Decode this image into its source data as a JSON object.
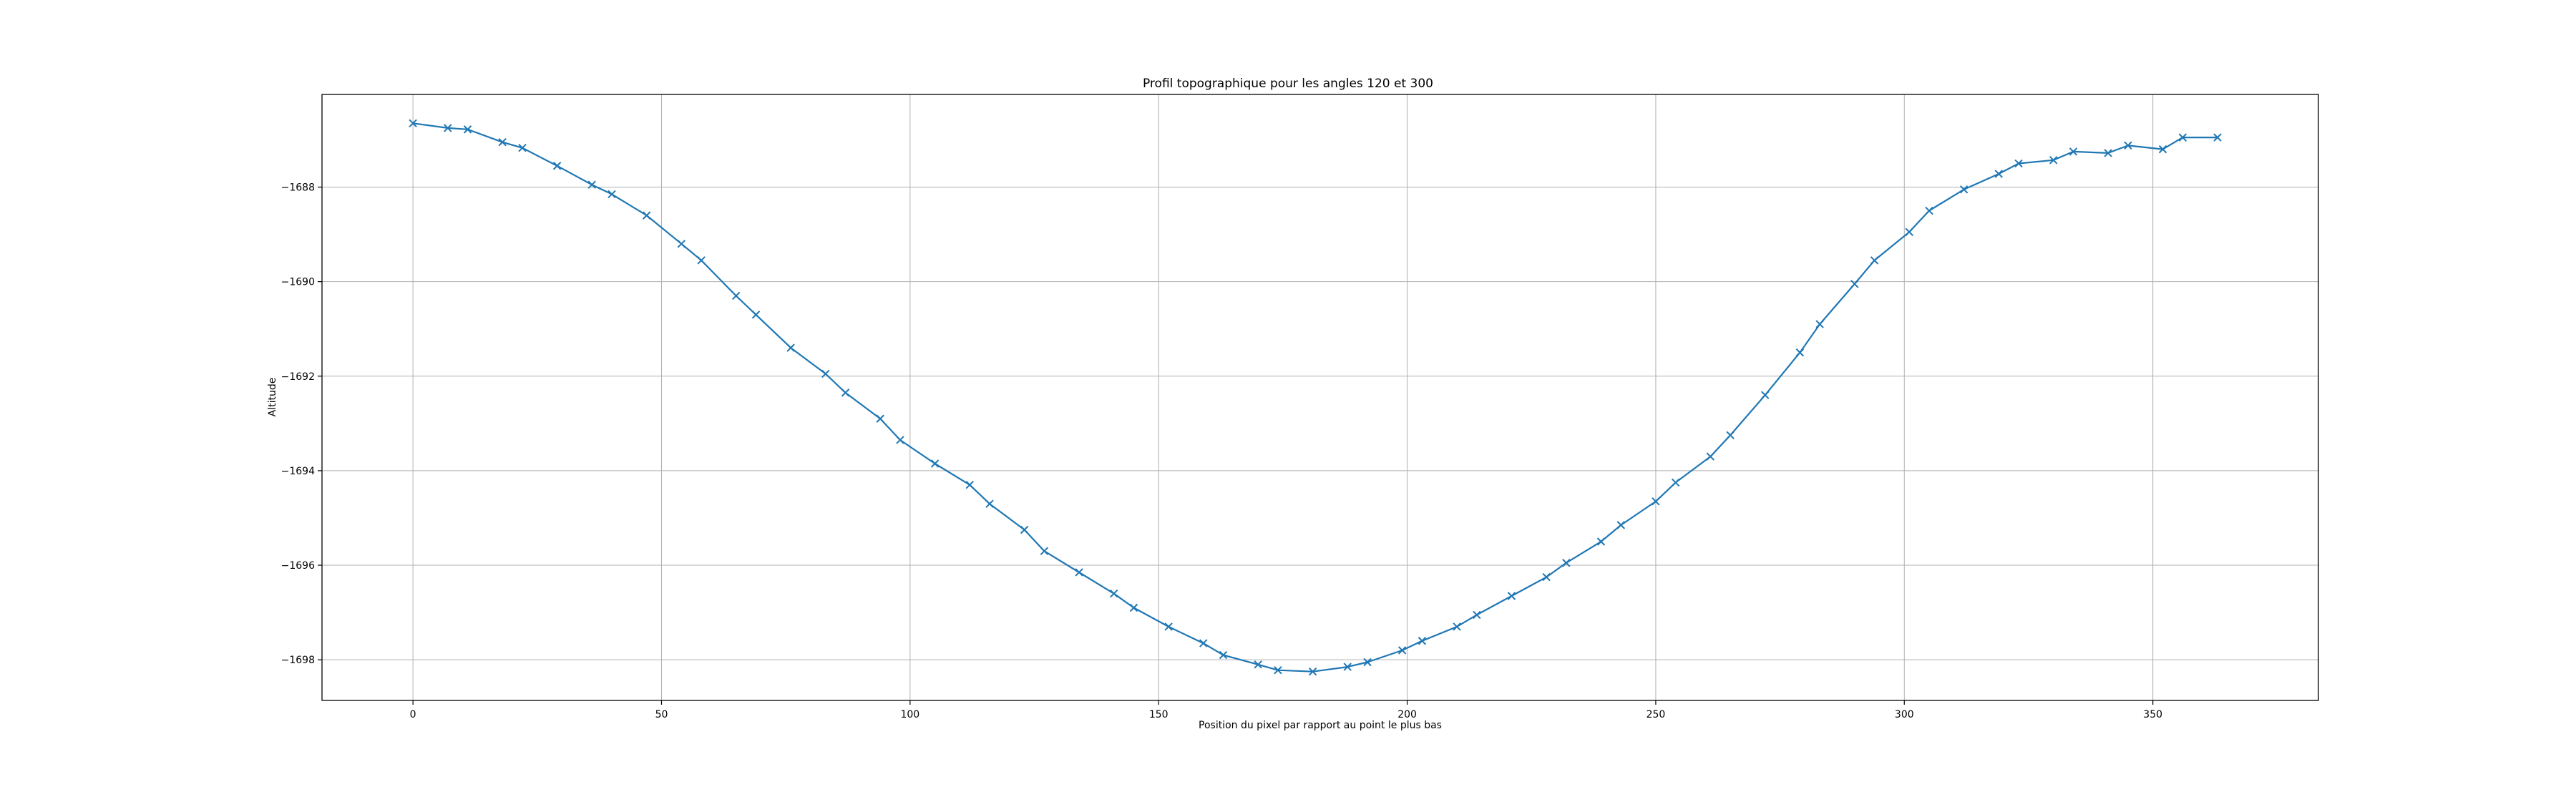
{
  "chart_data": {
    "type": "line",
    "title": "Profil topographique pour les angles 120 et 300",
    "xlabel": "Position du pixel par rapport au point le plus bas",
    "ylabel": "Altitude",
    "xlim": [
      -18.3,
      383.3
    ],
    "ylim": [
      -1698.86,
      -1686.04
    ],
    "xticks": [
      0,
      50,
      100,
      150,
      200,
      250,
      300,
      350
    ],
    "yticks": [
      -1698,
      -1696,
      -1694,
      -1692,
      -1690,
      -1688
    ],
    "ytick_labels": [
      "−1698",
      "−1696",
      "−1694",
      "−1692",
      "−1690",
      "−1688"
    ],
    "grid": true,
    "marker": "x",
    "color": "#1f77b4",
    "series": [
      {
        "x": [
          0,
          7,
          11,
          18,
          22,
          29,
          36,
          40,
          47,
          54,
          58,
          65,
          69,
          76,
          83,
          87,
          94,
          98,
          105,
          112,
          116,
          123,
          127,
          134,
          141,
          145,
          152,
          159,
          163,
          170,
          174,
          181,
          188,
          192,
          199,
          203,
          210,
          214,
          221,
          228,
          232,
          239,
          243,
          250,
          254,
          261,
          265,
          272,
          279,
          283,
          290,
          294,
          301,
          305,
          312,
          319,
          323,
          330,
          334,
          341,
          345,
          352,
          356,
          363
        ],
        "y": [
          -1686.65,
          -1686.75,
          -1686.78,
          -1687.05,
          -1687.17,
          -1687.55,
          -1687.95,
          -1688.15,
          -1688.6,
          -1689.2,
          -1689.55,
          -1690.3,
          -1690.7,
          -1691.4,
          -1691.95,
          -1692.35,
          -1692.9,
          -1693.35,
          -1693.85,
          -1694.3,
          -1694.7,
          -1695.25,
          -1695.7,
          -1696.15,
          -1696.6,
          -1696.9,
          -1697.3,
          -1697.65,
          -1697.9,
          -1698.1,
          -1698.22,
          -1698.25,
          -1698.15,
          -1698.05,
          -1697.8,
          -1697.6,
          -1697.3,
          -1697.05,
          -1696.65,
          -1696.25,
          -1695.95,
          -1695.5,
          -1695.15,
          -1694.65,
          -1694.25,
          -1693.7,
          -1693.25,
          -1692.4,
          -1691.5,
          -1690.9,
          -1690.05,
          -1689.55,
          -1688.95,
          -1688.5,
          -1688.05,
          -1687.72,
          -1687.5,
          -1687.43,
          -1687.25,
          -1687.28,
          -1687.12,
          -1687.2,
          -1686.95,
          -1686.95
        ]
      }
    ]
  }
}
